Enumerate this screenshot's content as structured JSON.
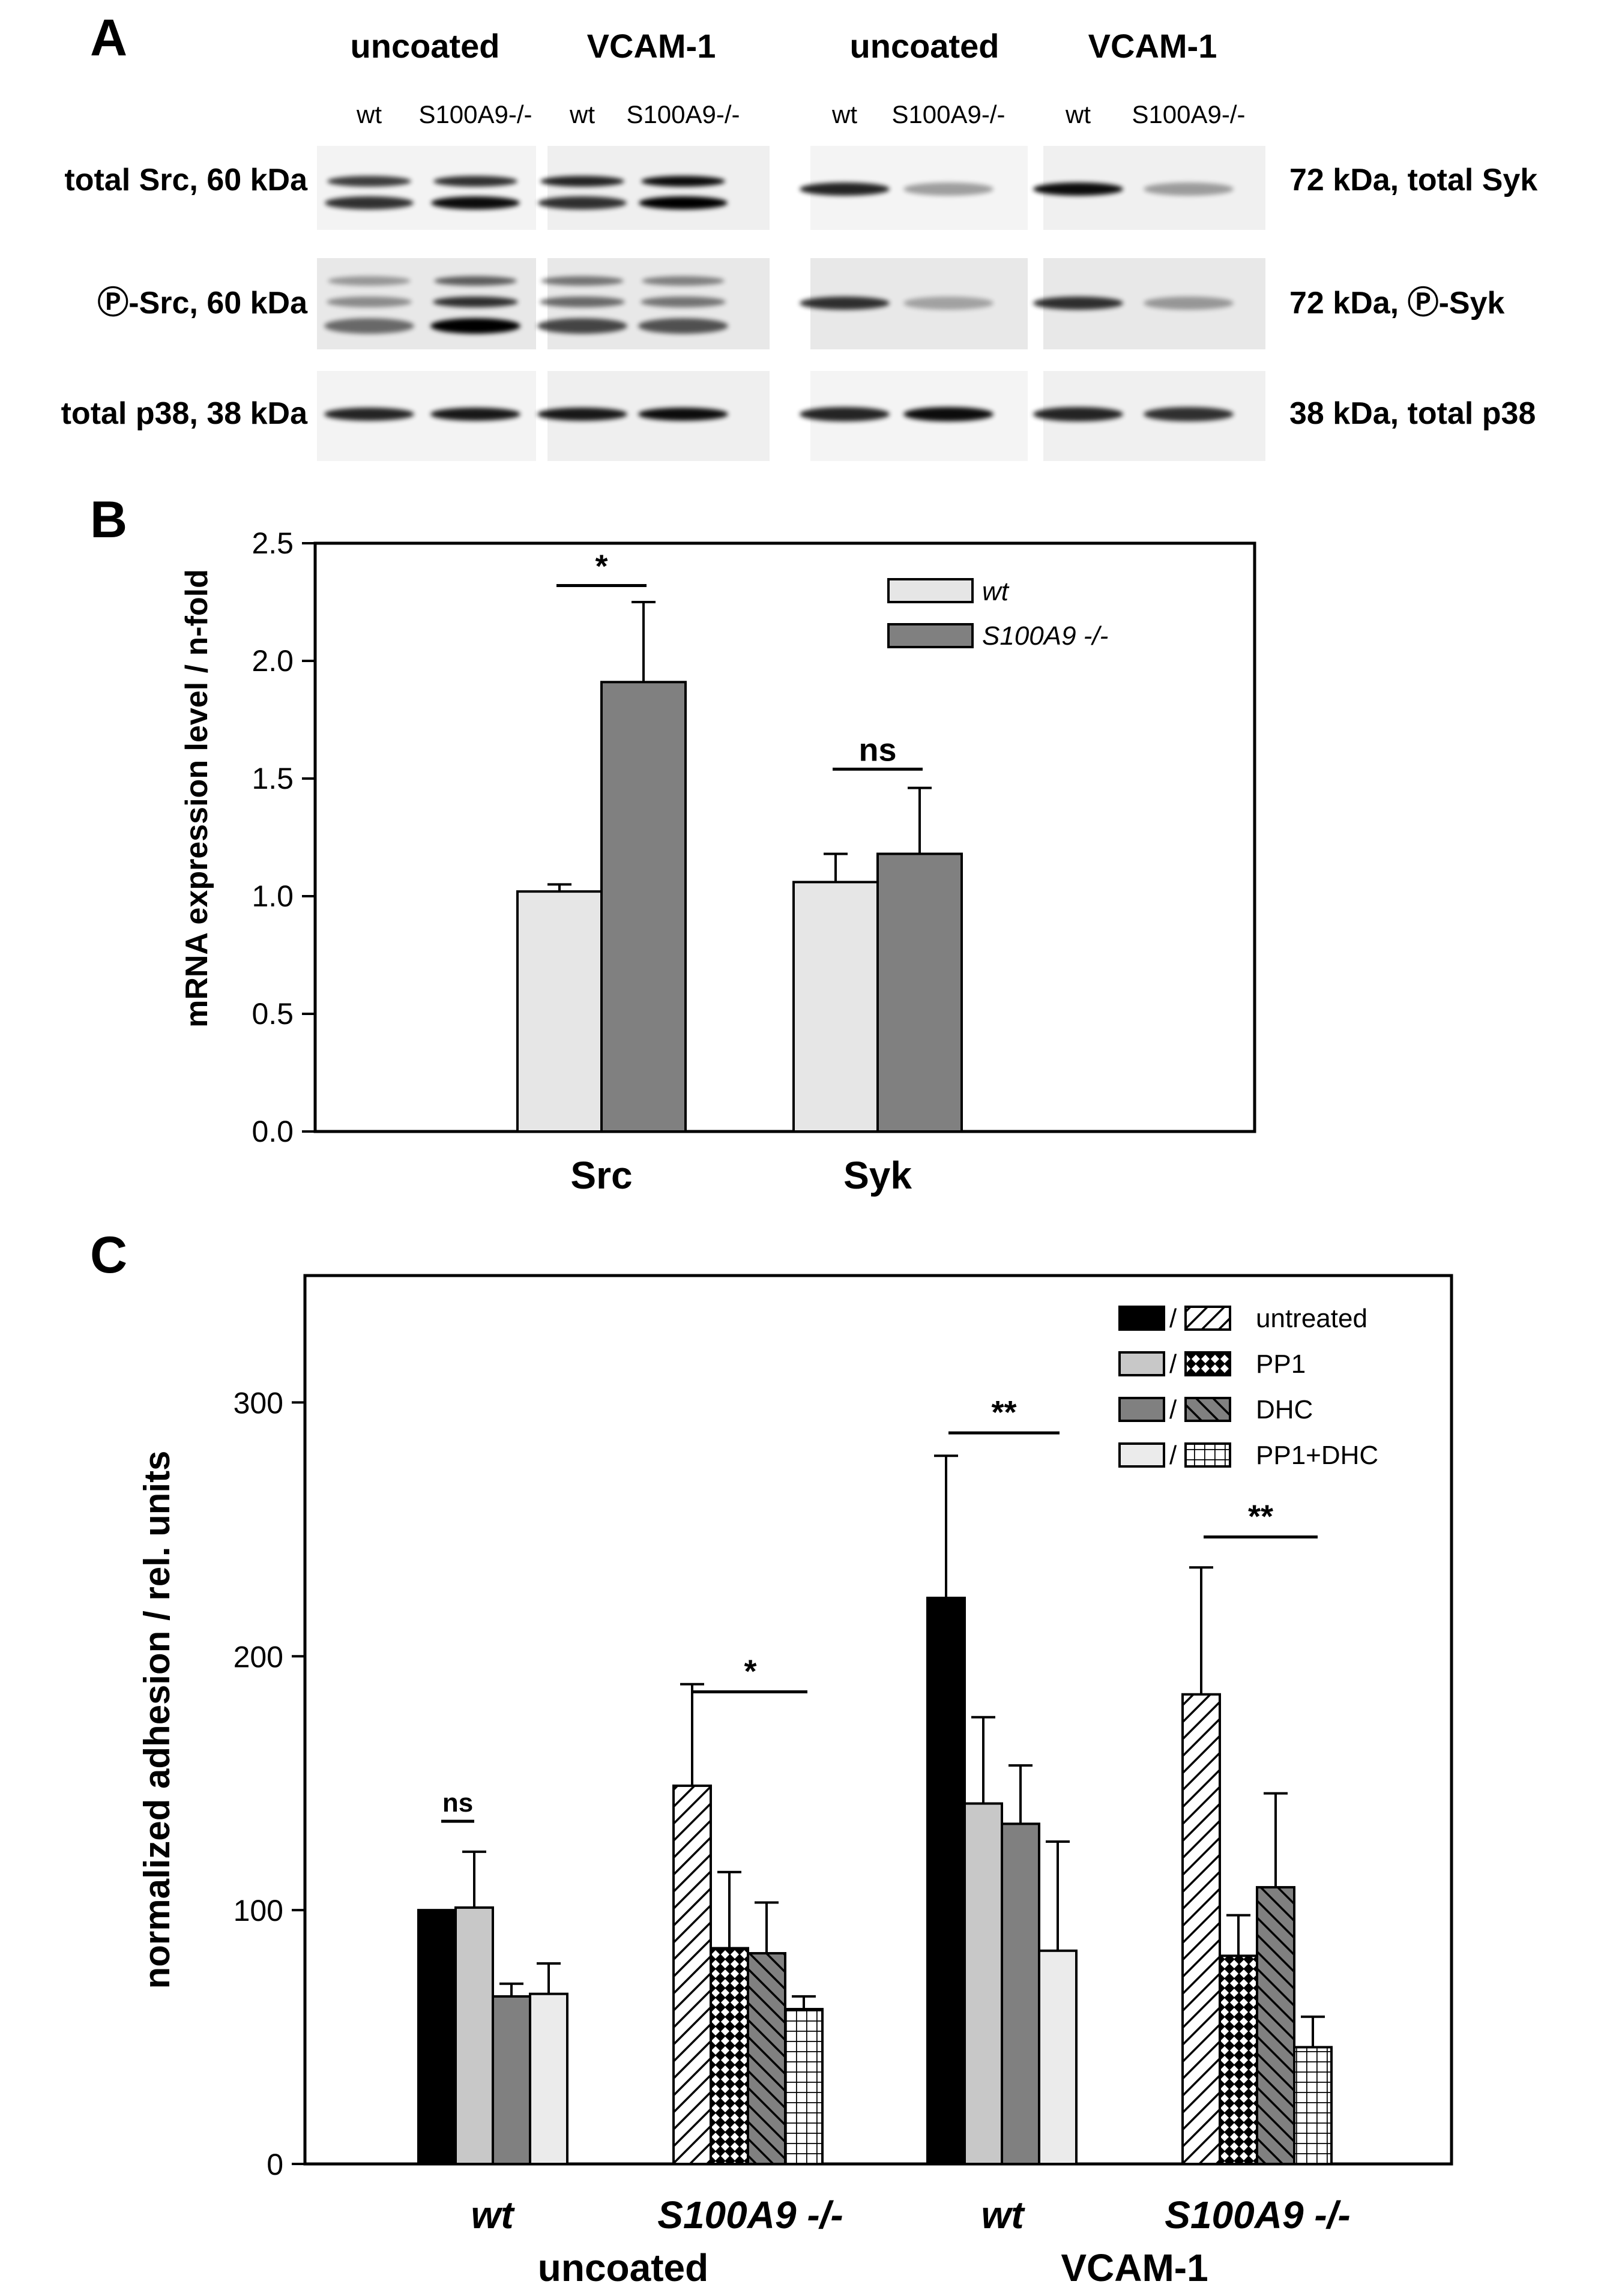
{
  "panelA": {
    "letter": "A",
    "left_headers": [
      "uncoated",
      "VCAM-1"
    ],
    "right_headers": [
      "uncoated",
      "VCAM-1"
    ],
    "lanes": [
      "wt",
      "S100A9-/-",
      "wt",
      "S100A9-/-"
    ],
    "left_labels": [
      "total Src, 60 kDa",
      "Ⓟ-Src, 60 kDa",
      "total p38, 38 kDa"
    ],
    "right_labels": [
      "72 kDa, total Syk",
      "72 kDa, Ⓟ-Syk",
      "38 kDa, total p38"
    ],
    "band_intensity": {
      "total_src": [
        [
          0.75,
          0.8
        ],
        [
          0.8,
          0.95
        ],
        [
          0.85,
          0.8
        ],
        [
          0.95,
          1.0
        ]
      ],
      "p_src": [
        [
          0.35,
          0.4,
          0.55
        ],
        [
          0.6,
          0.8,
          1.0
        ],
        [
          0.5,
          0.55,
          0.7
        ],
        [
          0.45,
          0.5,
          0.65
        ]
      ],
      "p38_left": [
        0.85,
        0.9,
        0.9,
        0.95
      ],
      "total_syk": [
        0.85,
        0.35,
        0.95,
        0.35
      ],
      "p_syk": [
        0.8,
        0.3,
        0.8,
        0.35
      ],
      "p38_right": [
        0.85,
        0.95,
        0.85,
        0.8
      ]
    }
  },
  "chart_data": [
    {
      "panel": "B",
      "type": "bar",
      "ylabel": "mRNA expression level / n-fold",
      "ylim": [
        0,
        2.5
      ],
      "yticks": [
        "0.0",
        "0.5",
        "1.0",
        "1.5",
        "2.0",
        "2.5"
      ],
      "categories": [
        "Src",
        "Syk"
      ],
      "series": [
        {
          "name": "wt",
          "color": "#e6e6e6",
          "values": [
            1.02,
            1.06
          ],
          "errors": [
            0.03,
            0.12
          ]
        },
        {
          "name": "S100A9 -/-",
          "color": "#808080",
          "values": [
            1.91,
            1.18
          ],
          "errors": [
            0.34,
            0.28
          ]
        }
      ],
      "significance": [
        "*",
        "ns"
      ],
      "legend_position": "top-right"
    },
    {
      "panel": "C",
      "type": "bar",
      "ylabel": "normalized adhesion / rel. units",
      "ylim": [
        0,
        350
      ],
      "yticks": [
        "0",
        "100",
        "200",
        "300"
      ],
      "groups": [
        {
          "label": "wt",
          "genotype": "wt",
          "values": [
            100,
            101,
            66,
            67
          ],
          "errors": [
            0,
            22,
            5,
            12
          ],
          "sig": "ns"
        },
        {
          "label": "S100A9 -/-",
          "genotype": "ko",
          "values": [
            149,
            85,
            83,
            61
          ],
          "errors": [
            40,
            30,
            20,
            5
          ],
          "sig": "*"
        },
        {
          "label": "wt",
          "genotype": "wt",
          "values": [
            223,
            142,
            134,
            84
          ],
          "errors": [
            56,
            34,
            23,
            43
          ],
          "sig": "**"
        },
        {
          "label": "S100A9 -/-",
          "genotype": "ko",
          "values": [
            185,
            82,
            109,
            46
          ],
          "errors": [
            50,
            16,
            37,
            12
          ],
          "sig": "**"
        }
      ],
      "coating_labels": [
        "uncoated",
        "VCAM-1"
      ],
      "legend": [
        "untreated",
        "PP1",
        "DHC",
        "PP1+DHC"
      ],
      "legend_slash": "/",
      "colors": [
        "#000000",
        "#c8c8c8",
        "#808080",
        "#ebebeb"
      ],
      "legend_position": "top-right"
    }
  ]
}
